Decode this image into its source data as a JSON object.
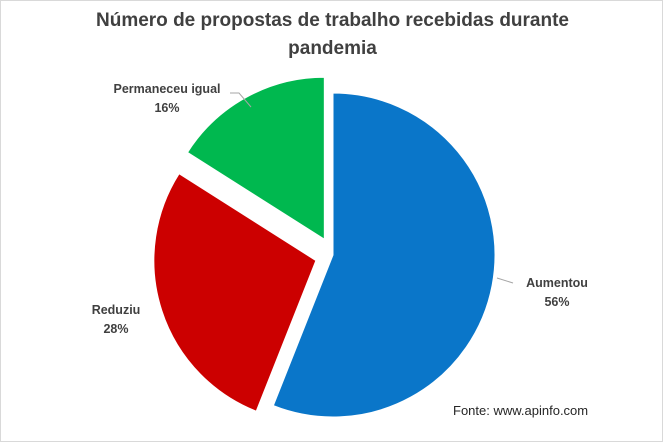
{
  "chart_data": {
    "type": "pie",
    "title_lines": [
      "Número de propostas  de trabalho  recebidas durante",
      "pandemia"
    ],
    "slices": [
      {
        "label": "Aumentou",
        "value": 56,
        "display": "56%",
        "color": "#0a76c9"
      },
      {
        "label": "Reduziu",
        "value": 28,
        "display": "28%",
        "color": "#cc0000"
      },
      {
        "label": "Permaneceu igual",
        "value": 16,
        "display": "16%",
        "color": "#00b84f"
      }
    ],
    "explode": [
      "Reduziu",
      "Permaneceu igual"
    ],
    "legend": "none",
    "label_position": "outside"
  },
  "source": "Fonte: www.apinfo.com"
}
